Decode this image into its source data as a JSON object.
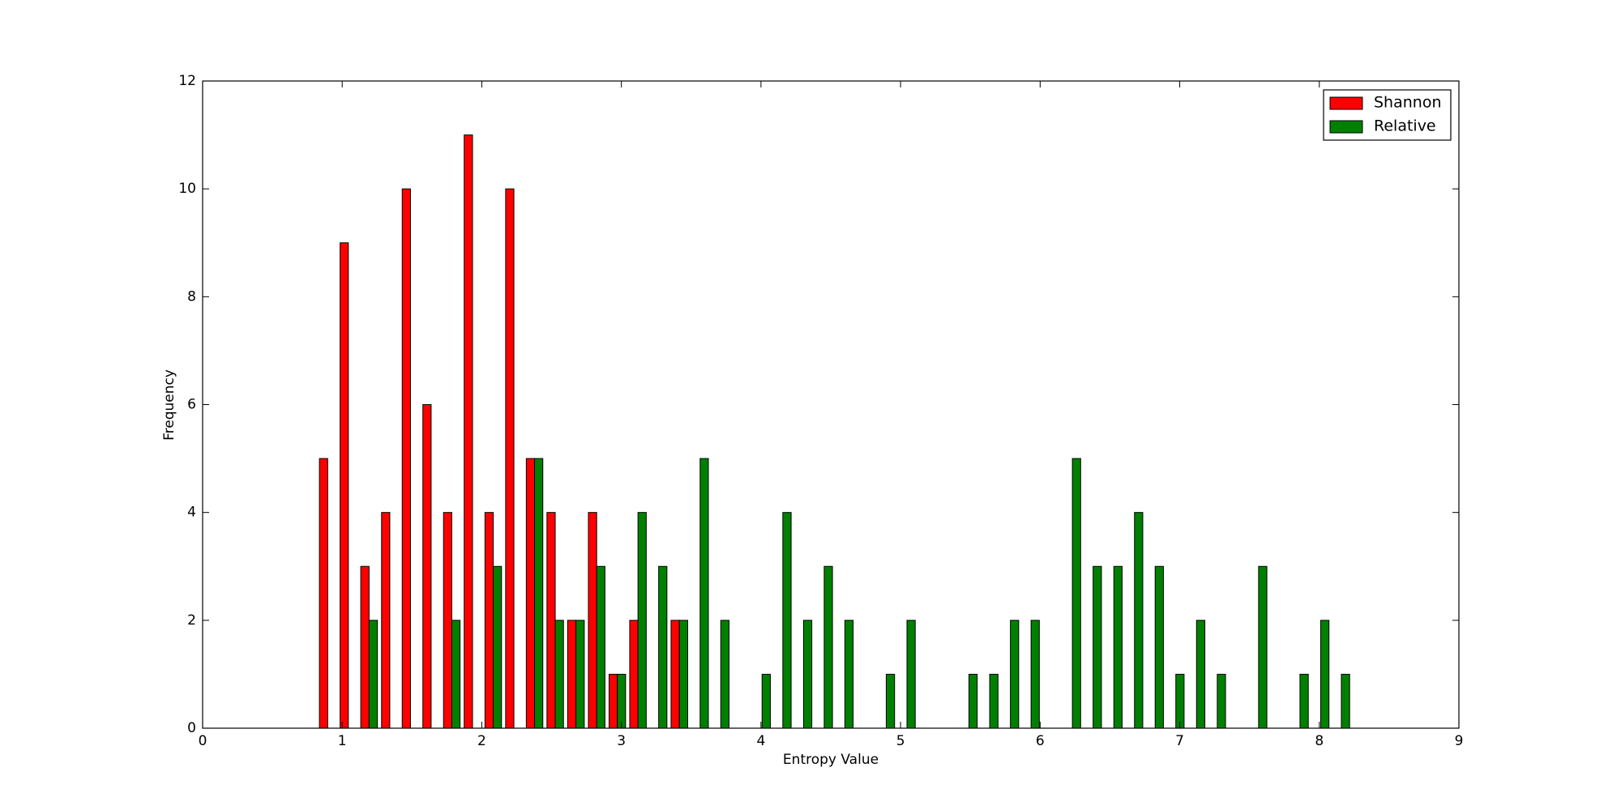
{
  "chart_data": {
    "type": "histogram",
    "xlabel": "Entropy Value",
    "ylabel": "Frequency",
    "bins": [
      0.822,
      0.97,
      1.118,
      1.267,
      1.415,
      1.563,
      1.711,
      1.859,
      2.008,
      2.156,
      2.304,
      2.452,
      2.6,
      2.749,
      2.897,
      3.045,
      3.193,
      3.341,
      3.49,
      3.638,
      3.786,
      3.934,
      4.082,
      4.231,
      4.379,
      4.527,
      4.675,
      4.823,
      4.972,
      5.12,
      5.268,
      5.416,
      5.564,
      5.713,
      5.861,
      6.009,
      6.157,
      6.305,
      6.454,
      6.602,
      6.75,
      6.898,
      7.046,
      7.195,
      7.343,
      7.491,
      7.639,
      7.787,
      7.936,
      8.084,
      8.232
    ],
    "series": [
      {
        "name": "Shannon",
        "color": "#ff0000",
        "values": [
          5,
          9,
          3,
          4,
          10,
          6,
          4,
          11,
          4,
          10,
          5,
          4,
          2,
          4,
          1,
          2,
          0,
          2,
          0,
          0,
          0,
          0,
          0,
          0,
          0,
          0,
          0,
          0,
          0,
          0,
          0,
          0,
          0,
          0,
          0,
          0,
          0,
          0,
          0,
          0,
          0,
          0,
          0,
          0,
          0,
          0,
          0,
          0,
          0,
          0
        ]
      },
      {
        "name": "Relative",
        "color": "#008000",
        "values": [
          0,
          0,
          2,
          0,
          0,
          0,
          2,
          0,
          3,
          0,
          5,
          2,
          2,
          3,
          1,
          4,
          3,
          2,
          5,
          2,
          0,
          1,
          4,
          2,
          3,
          2,
          0,
          1,
          2,
          0,
          0,
          1,
          1,
          2,
          2,
          0,
          5,
          3,
          3,
          4,
          3,
          1,
          2,
          1,
          0,
          3,
          0,
          1,
          2,
          1
        ]
      }
    ],
    "xlim": [
      0,
      9
    ],
    "xticks": [
      0,
      1,
      2,
      3,
      4,
      5,
      6,
      7,
      8,
      9
    ],
    "ylim": [
      0,
      12
    ],
    "yticks": [
      0,
      2,
      4,
      6,
      8,
      10,
      12
    ],
    "legend": "upper right"
  }
}
